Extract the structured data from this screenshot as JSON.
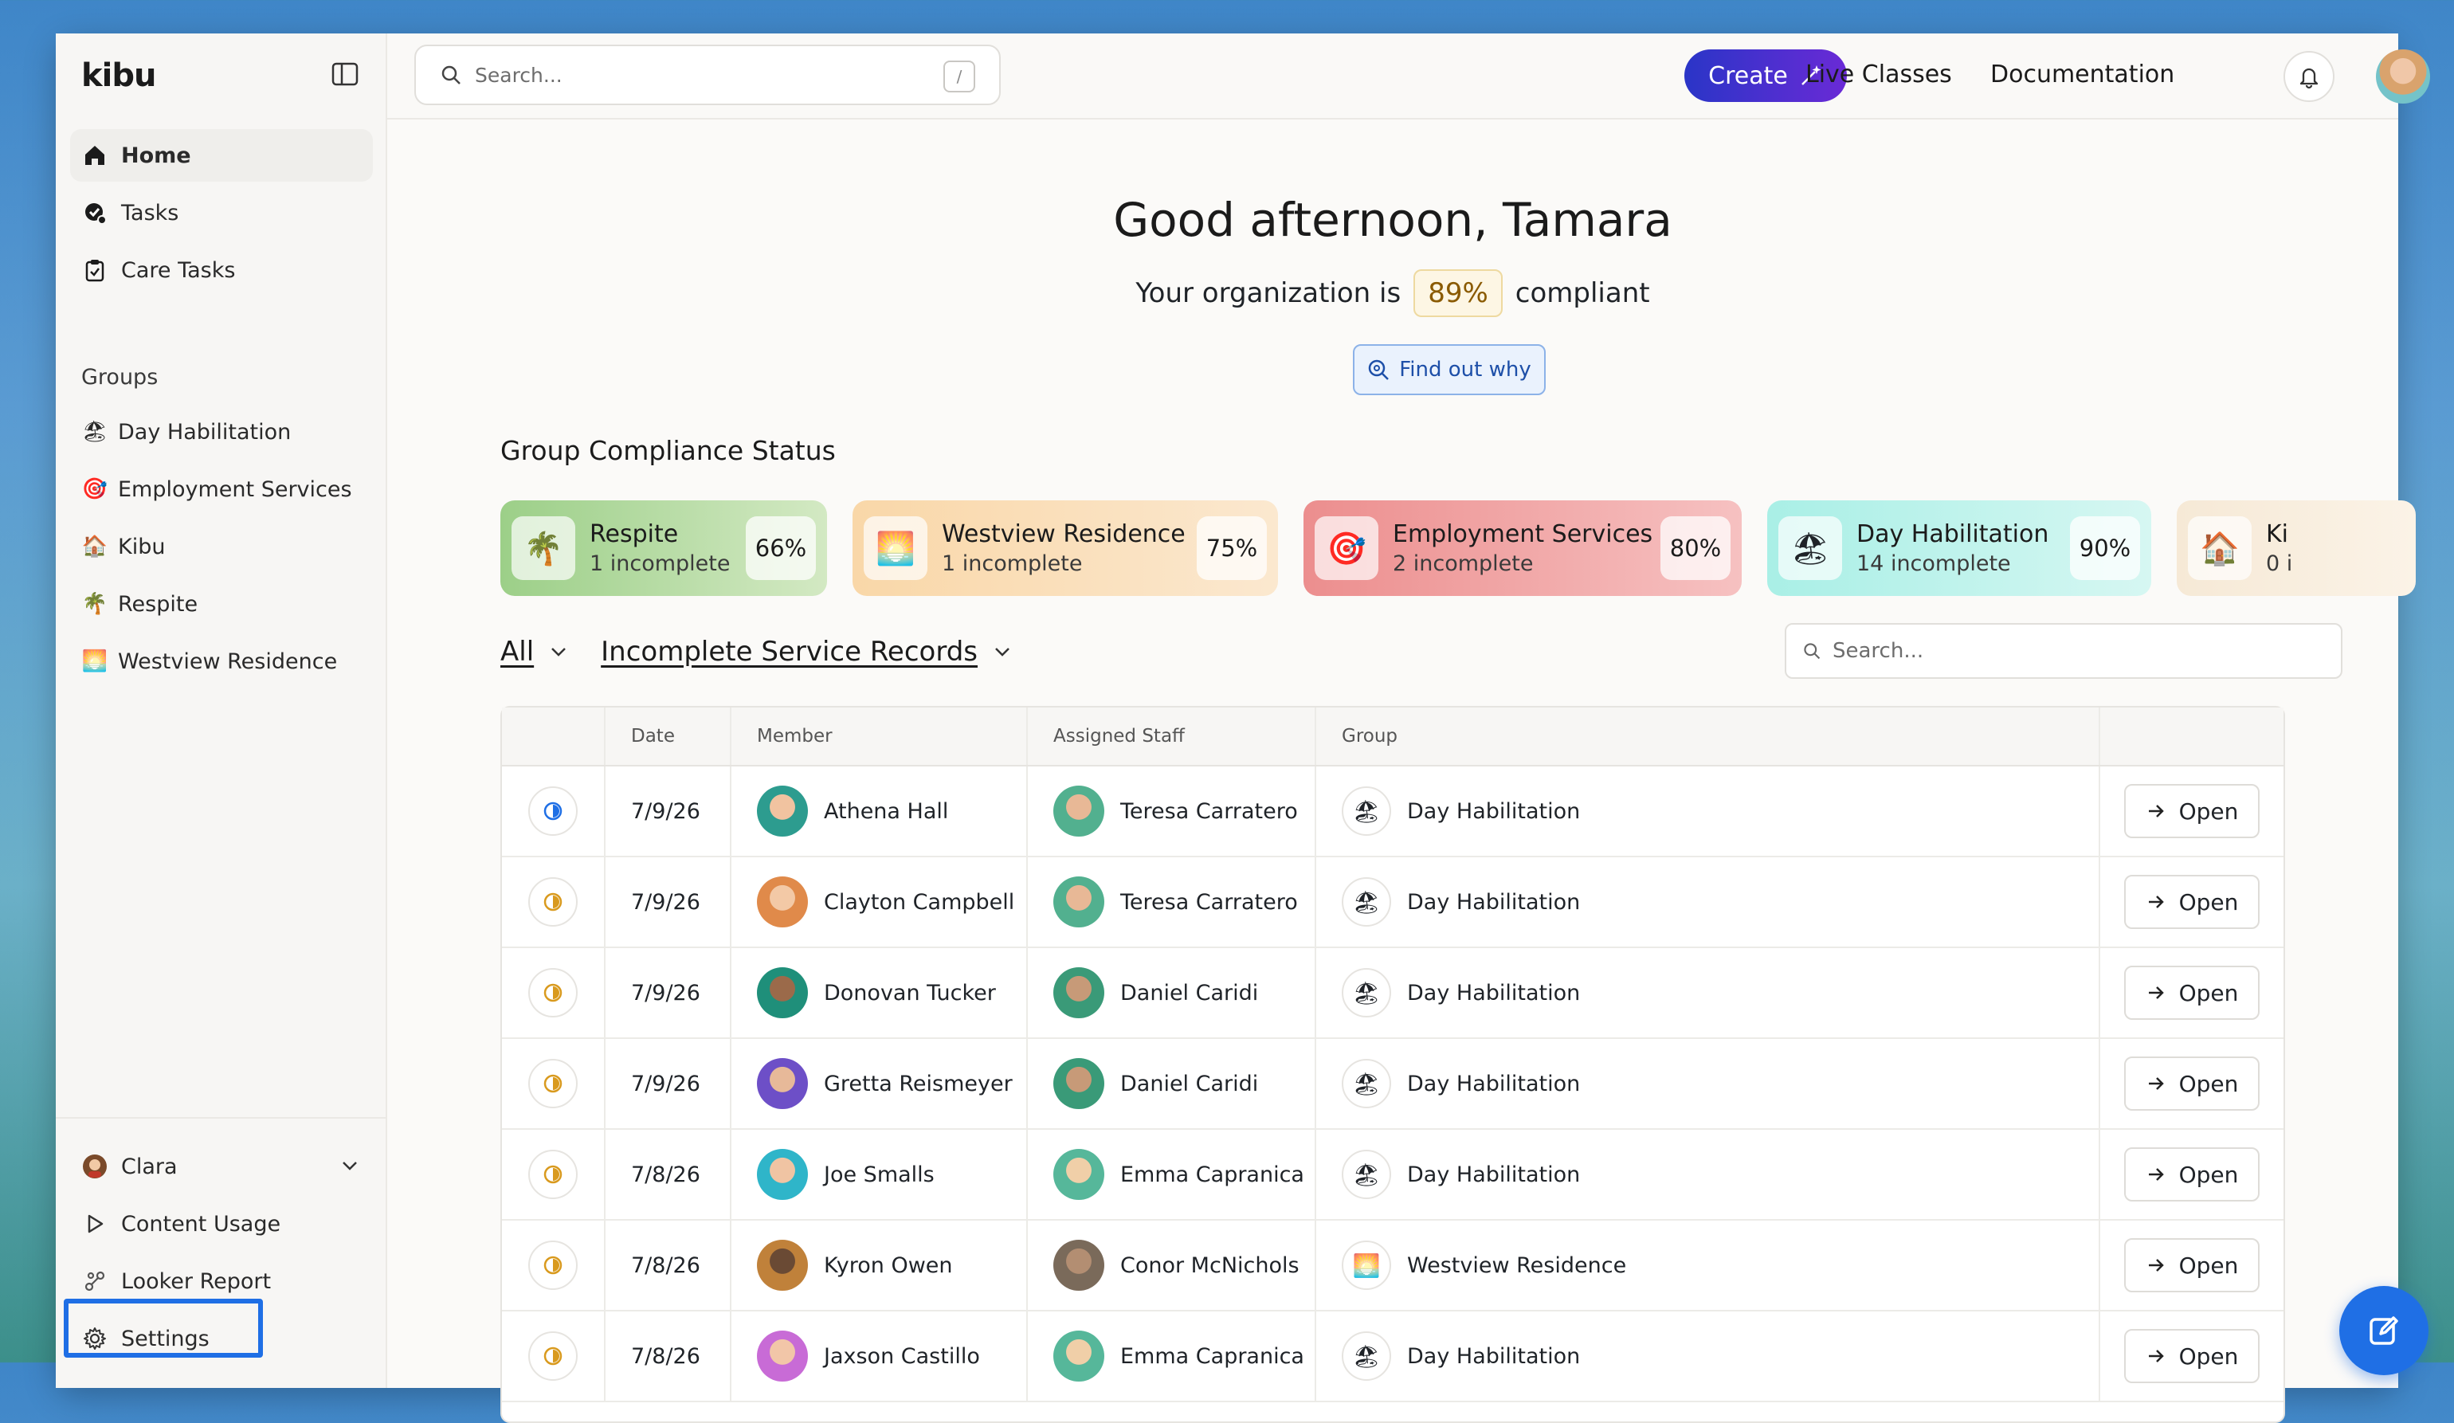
{
  "app": {
    "brand": "kibu"
  },
  "sidebar": {
    "nav": [
      {
        "label": "Home",
        "icon": "home-icon",
        "active": true
      },
      {
        "label": "Tasks",
        "icon": "tasks-icon"
      },
      {
        "label": "Care Tasks",
        "icon": "clipboard-check-icon"
      }
    ],
    "groups_heading": "Groups",
    "groups": [
      {
        "label": "Day Habilitation",
        "emoji": "🏖"
      },
      {
        "label": "Employment Services",
        "emoji": "🎯"
      },
      {
        "label": "Kibu",
        "emoji": "🏠"
      },
      {
        "label": "Respite",
        "emoji": "🌴"
      },
      {
        "label": "Westview Residence",
        "emoji": "🌅"
      }
    ],
    "bottom": [
      {
        "label": "Clara",
        "icon": "user-avatar-icon"
      },
      {
        "label": "Content Usage",
        "icon": "play-icon"
      },
      {
        "label": "Looker Report",
        "icon": "graph-icon"
      },
      {
        "label": "Settings",
        "icon": "gear-icon"
      }
    ]
  },
  "topbar": {
    "search_placeholder": "Search...",
    "search_shortcut": "/",
    "create_label": "Create",
    "live_classes": "Live Classes",
    "documentation": "Documentation"
  },
  "main": {
    "greeting": "Good afternoon, Tamara",
    "compliance_prefix": "Your organization is",
    "compliance_pct": "89%",
    "compliance_suffix": "compliant",
    "find_out_label": "Find out why",
    "section_title": "Group Compliance Status",
    "cards": [
      {
        "name": "Respite",
        "sub": "1 incomplete",
        "pct": "66%",
        "emoji": "🌴"
      },
      {
        "name": "Westview Residence",
        "sub": "1 incomplete",
        "pct": "75%",
        "emoji": "🌅"
      },
      {
        "name": "Employment Services",
        "sub": "2 incomplete",
        "pct": "80%",
        "emoji": "🎯"
      },
      {
        "name": "Day Habilitation",
        "sub": "14 incomplete",
        "pct": "90%",
        "emoji": "🏖"
      },
      {
        "name": "Ki",
        "sub": "0 i",
        "pct": "",
        "emoji": "🏠"
      }
    ],
    "filter_all": "All",
    "filter_records": "Incomplete Service Records",
    "table_search_placeholder": "Search...",
    "columns": [
      "",
      "Date",
      "Member",
      "Assigned Staff",
      "Group",
      ""
    ],
    "open_label": "Open",
    "rows": [
      {
        "status": "in-progress",
        "date": "7/9/26",
        "member": "Athena Hall",
        "staff": "Teresa Carratero",
        "group": "Day Habilitation",
        "group_emoji": "🏖"
      },
      {
        "status": "pending",
        "date": "7/9/26",
        "member": "Clayton Campbell",
        "staff": "Teresa Carratero",
        "group": "Day Habilitation",
        "group_emoji": "🏖"
      },
      {
        "status": "pending",
        "date": "7/9/26",
        "member": "Donovan Tucker",
        "staff": "Daniel Caridi",
        "group": "Day Habilitation",
        "group_emoji": "🏖"
      },
      {
        "status": "pending",
        "date": "7/9/26",
        "member": "Gretta Reismeyer",
        "staff": "Daniel Caridi",
        "group": "Day Habilitation",
        "group_emoji": "🏖"
      },
      {
        "status": "pending",
        "date": "7/8/26",
        "member": "Joe Smalls",
        "staff": "Emma Capranica",
        "group": "Day Habilitation",
        "group_emoji": "🏖"
      },
      {
        "status": "pending",
        "date": "7/8/26",
        "member": "Kyron Owen",
        "staff": "Conor McNichols",
        "group": "Westview Residence",
        "group_emoji": "🌅"
      },
      {
        "status": "pending",
        "date": "7/8/26",
        "member": "Jaxson Castillo",
        "staff": "Emma Capranica",
        "group": "Day Habilitation",
        "group_emoji": "🏖"
      }
    ]
  },
  "colors": {
    "accent": "#1f6fe5",
    "create_gradient_start": "#2a35c7",
    "create_gradient_end": "#6a2ad6",
    "status_in_progress": "#1f6fe5",
    "status_pending": "#d99a1e"
  }
}
